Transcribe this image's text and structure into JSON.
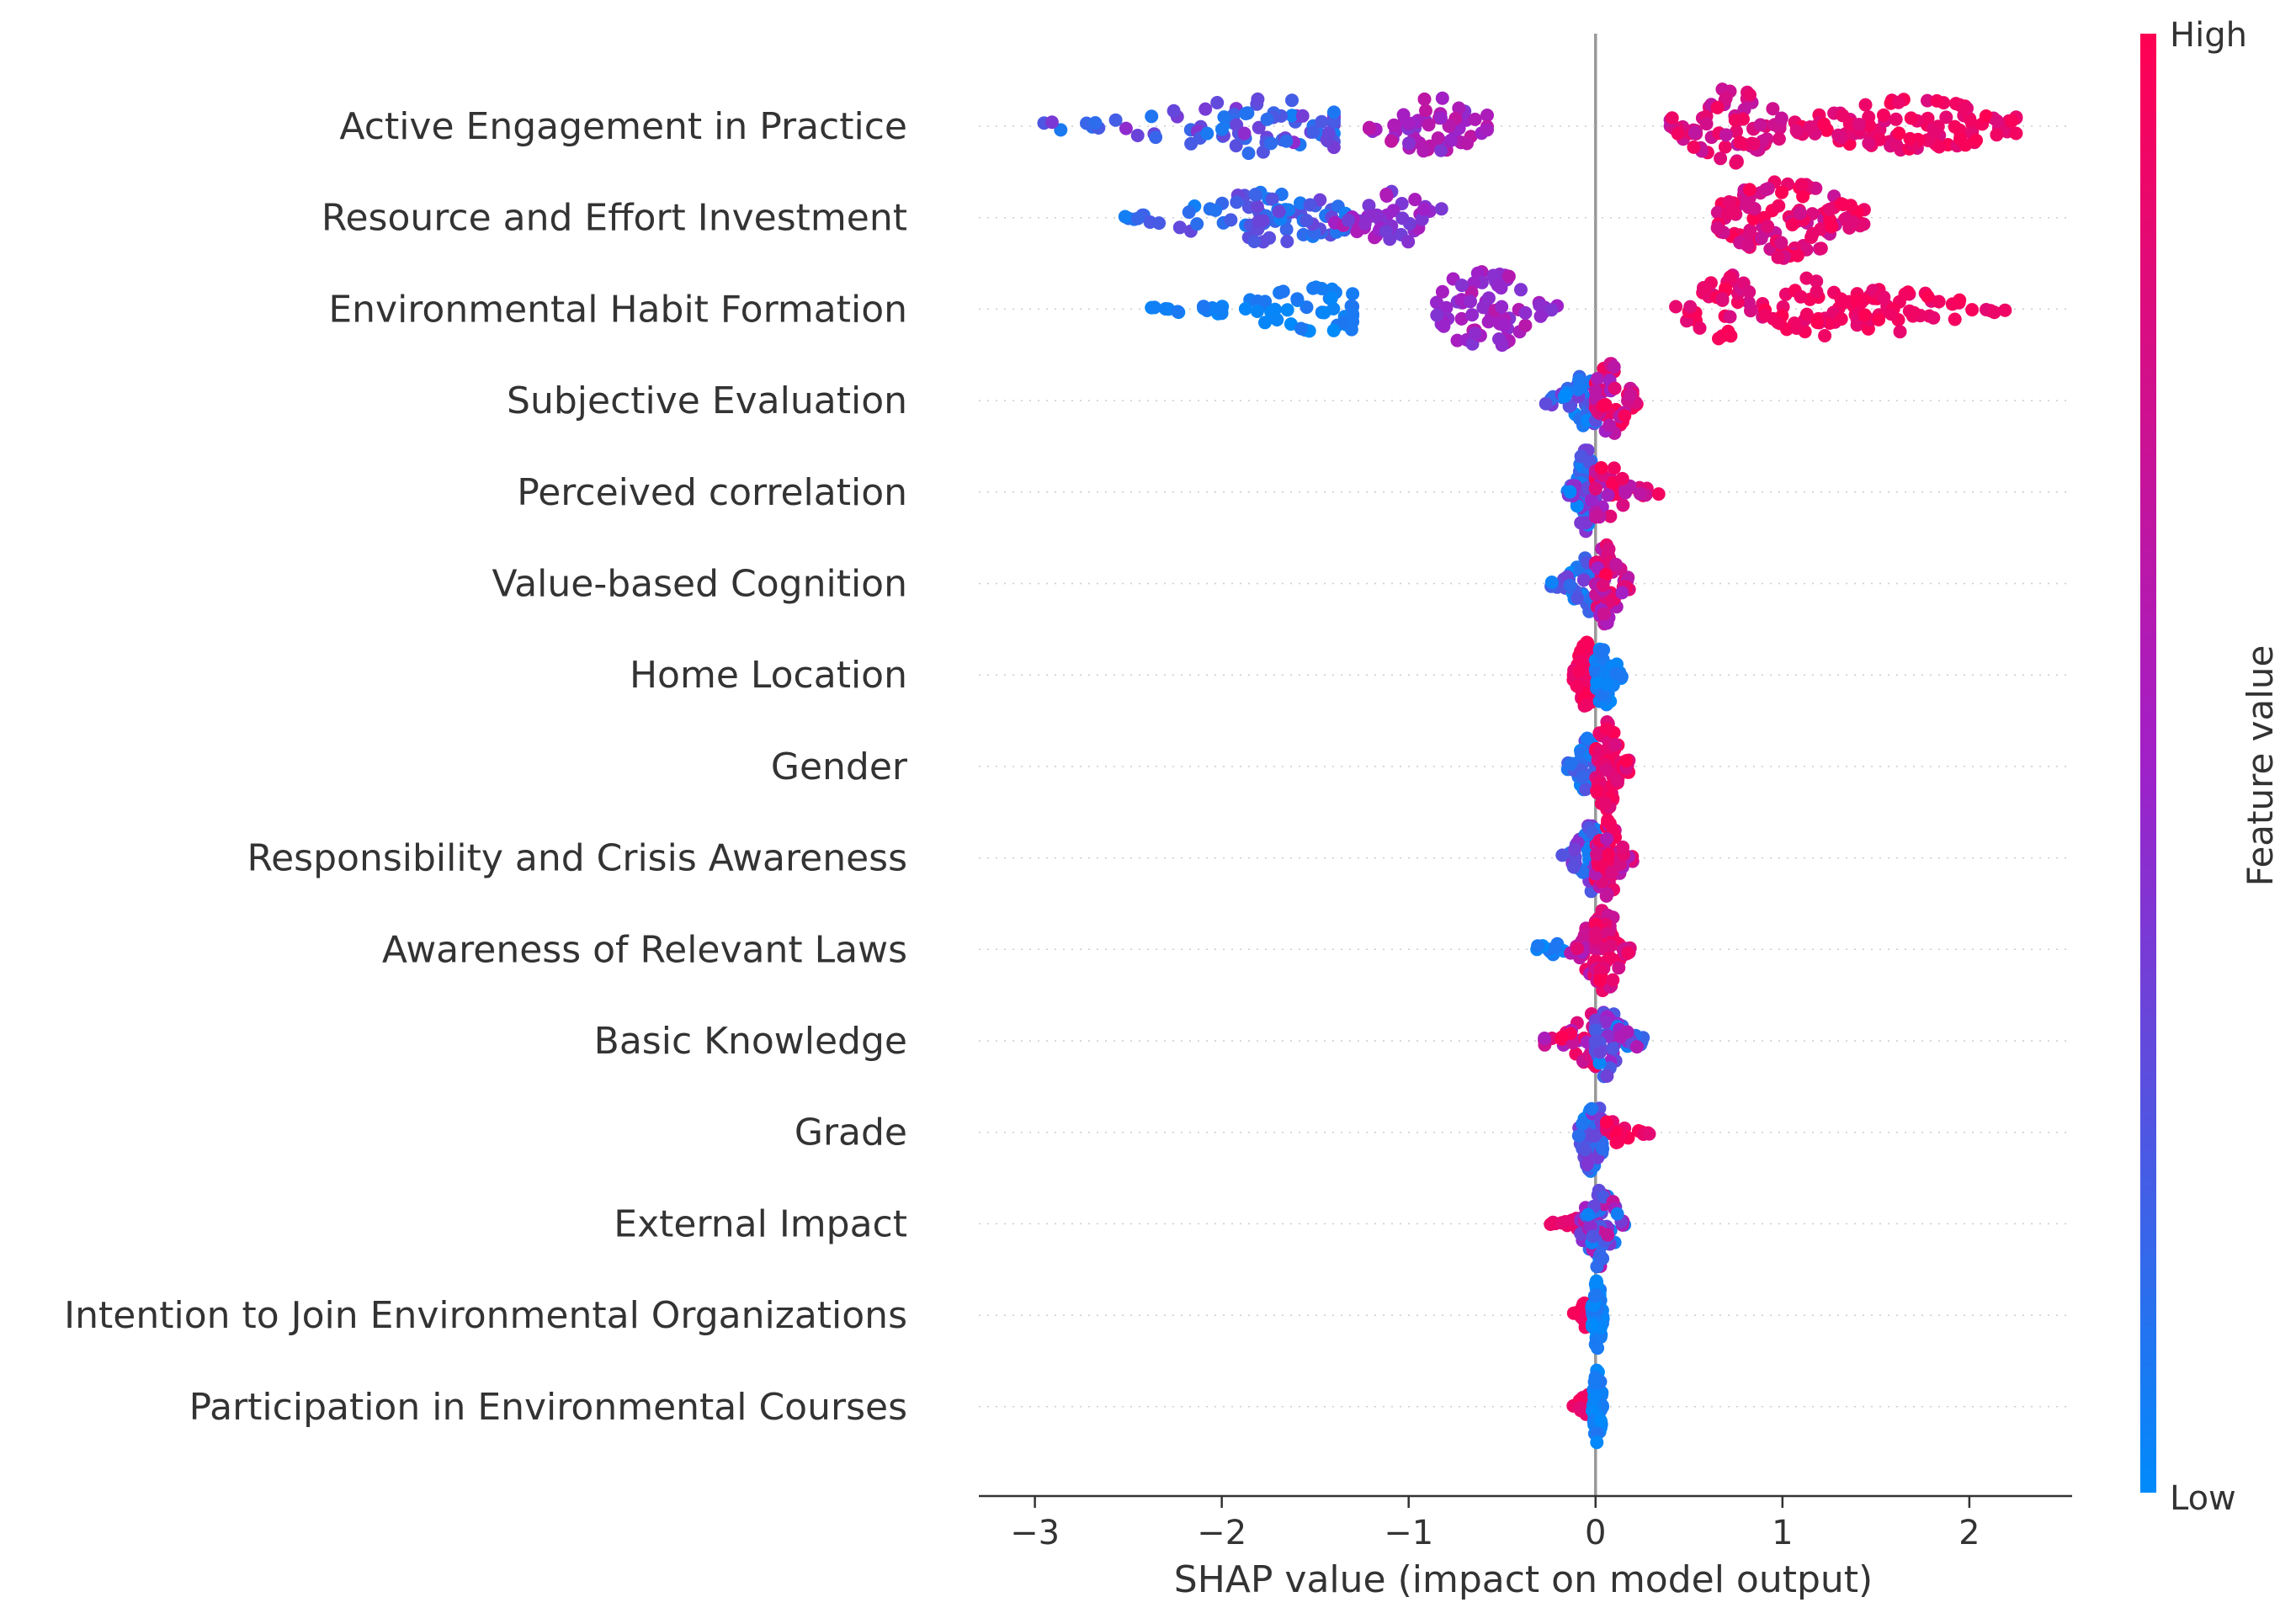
{
  "chart_data": {
    "type": "scatter",
    "subtype": "shap-beeswarm",
    "title": "",
    "xlabel": "SHAP value (impact on model output)",
    "xlim": [
      -3.3,
      2.55
    ],
    "xticks": [
      -3,
      -2,
      -1,
      0,
      1,
      2
    ],
    "xtick_labels": [
      "−3",
      "−2",
      "−1",
      "0",
      "1",
      "2"
    ],
    "grid": false,
    "colorbar": {
      "title": "Feature value",
      "high_label": "High",
      "low_label": "Low",
      "low_color": "#008bfb",
      "mid_color": "#a020c8",
      "high_color": "#ff0052"
    },
    "series": [
      {
        "name": "Active Engagement in Practice",
        "clusters": [
          {
            "min": -3.0,
            "max": -1.4,
            "center": -1.75,
            "width": 1.0,
            "color_low": 0.05,
            "color_high": 0.45,
            "n": 80
          },
          {
            "min": -1.3,
            "max": -0.58,
            "center": -0.85,
            "width": 1.0,
            "color_low": 0.4,
            "color_high": 0.7,
            "n": 55
          },
          {
            "min": 0.4,
            "max": 1.0,
            "center": 0.72,
            "width": 1.4,
            "color_low": 0.65,
            "color_high": 0.95,
            "n": 70
          },
          {
            "min": 1.0,
            "max": 2.25,
            "center": 1.7,
            "width": 1.0,
            "color_low": 0.8,
            "color_high": 1.0,
            "n": 110
          }
        ]
      },
      {
        "name": "Resource and Effort Investment",
        "clusters": [
          {
            "min": -2.55,
            "max": -1.3,
            "center": -1.75,
            "width": 0.9,
            "color_low": 0.05,
            "color_high": 0.35,
            "n": 80
          },
          {
            "min": -1.4,
            "max": -0.8,
            "center": -1.1,
            "width": 1.0,
            "color_low": 0.35,
            "color_high": 0.6,
            "n": 45
          },
          {
            "min": 0.65,
            "max": 1.45,
            "center": 1.02,
            "width": 1.5,
            "color_low": 0.7,
            "color_high": 1.0,
            "n": 110
          }
        ]
      },
      {
        "name": "Environmental Habit Formation",
        "clusters": [
          {
            "min": -2.4,
            "max": -1.3,
            "center": -1.45,
            "width": 0.8,
            "color_low": 0.0,
            "color_high": 0.1,
            "n": 60
          },
          {
            "min": -0.85,
            "max": -0.2,
            "center": -0.6,
            "width": 1.5,
            "color_low": 0.4,
            "color_high": 0.65,
            "n": 70
          },
          {
            "min": 0.4,
            "max": 0.95,
            "center": 0.72,
            "width": 1.2,
            "color_low": 0.75,
            "color_high": 1.0,
            "n": 45
          },
          {
            "min": 0.95,
            "max": 1.4,
            "center": 1.15,
            "width": 1.1,
            "color_low": 0.85,
            "color_high": 1.0,
            "n": 35
          },
          {
            "min": 1.4,
            "max": 2.28,
            "center": 1.6,
            "width": 0.8,
            "color_low": 0.85,
            "color_high": 1.0,
            "n": 50
          }
        ]
      },
      {
        "name": "Subjective Evaluation",
        "clusters": [
          {
            "min": -0.28,
            "max": 0.0,
            "center": -0.05,
            "width": 1.0,
            "color_low": 0.0,
            "color_high": 0.4,
            "n": 40
          },
          {
            "min": 0.0,
            "max": 0.24,
            "center": 0.08,
            "width": 1.3,
            "color_low": 0.5,
            "color_high": 1.0,
            "n": 50
          }
        ]
      },
      {
        "name": "Perceived correlation",
        "clusters": [
          {
            "min": -0.15,
            "max": 0.0,
            "center": -0.05,
            "width": 1.5,
            "color_low": 0.0,
            "color_high": 0.5,
            "n": 60
          },
          {
            "min": 0.0,
            "max": 0.35,
            "center": 0.05,
            "width": 1.0,
            "color_low": 0.5,
            "color_high": 1.0,
            "n": 40
          }
        ]
      },
      {
        "name": "Value-based Cognition",
        "clusters": [
          {
            "min": -0.25,
            "max": 0.0,
            "center": -0.03,
            "width": 1.0,
            "color_low": 0.0,
            "color_high": 0.4,
            "n": 40
          },
          {
            "min": 0.0,
            "max": 0.18,
            "center": 0.06,
            "width": 1.5,
            "color_low": 0.5,
            "color_high": 1.0,
            "n": 60
          }
        ]
      },
      {
        "name": "Home Location",
        "clusters": [
          {
            "min": -0.12,
            "max": 0.0,
            "center": -0.05,
            "width": 1.2,
            "color_low": 0.85,
            "color_high": 1.0,
            "n": 50
          },
          {
            "min": 0.0,
            "max": 0.14,
            "center": 0.05,
            "width": 1.2,
            "color_low": 0.0,
            "color_high": 0.1,
            "n": 50
          }
        ]
      },
      {
        "name": "Gender",
        "clusters": [
          {
            "min": -0.15,
            "max": 0.0,
            "center": -0.04,
            "width": 1.0,
            "color_low": 0.0,
            "color_high": 0.3,
            "n": 40
          },
          {
            "min": 0.0,
            "max": 0.18,
            "center": 0.06,
            "width": 1.6,
            "color_low": 0.8,
            "color_high": 1.0,
            "n": 70
          }
        ]
      },
      {
        "name": "Responsibility and Crisis Awareness",
        "clusters": [
          {
            "min": -0.18,
            "max": 0.0,
            "center": -0.03,
            "width": 1.2,
            "color_low": 0.0,
            "color_high": 0.45,
            "n": 50
          },
          {
            "min": 0.0,
            "max": 0.2,
            "center": 0.06,
            "width": 1.4,
            "color_low": 0.5,
            "color_high": 1.0,
            "n": 60
          }
        ]
      },
      {
        "name": "Awareness of Relevant Laws",
        "clusters": [
          {
            "min": -0.35,
            "max": -0.15,
            "center": -0.25,
            "width": 0.3,
            "color_low": 0.0,
            "color_high": 0.1,
            "n": 12
          },
          {
            "min": -0.15,
            "max": 0.0,
            "center": -0.02,
            "width": 1.0,
            "color_low": 0.5,
            "color_high": 1.0,
            "n": 40
          },
          {
            "min": 0.0,
            "max": 0.2,
            "center": 0.05,
            "width": 1.5,
            "color_low": 0.7,
            "color_high": 1.0,
            "n": 60
          }
        ]
      },
      {
        "name": "Basic Knowledge",
        "clusters": [
          {
            "min": -0.28,
            "max": 0.0,
            "center": -0.03,
            "width": 1.0,
            "color_low": 0.5,
            "color_high": 1.0,
            "n": 40
          },
          {
            "min": 0.0,
            "max": 0.26,
            "center": 0.04,
            "width": 1.4,
            "color_low": 0.0,
            "color_high": 0.6,
            "n": 60
          }
        ]
      },
      {
        "name": "Grade",
        "clusters": [
          {
            "min": -0.1,
            "max": 0.06,
            "center": -0.02,
            "width": 1.4,
            "color_low": 0.0,
            "color_high": 0.45,
            "n": 55
          },
          {
            "min": 0.06,
            "max": 0.3,
            "center": 0.1,
            "width": 0.45,
            "color_low": 0.85,
            "color_high": 1.0,
            "n": 25
          }
        ]
      },
      {
        "name": "External Impact",
        "clusters": [
          {
            "min": -0.25,
            "max": -0.05,
            "center": -0.15,
            "width": 0.3,
            "color_low": 0.85,
            "color_high": 1.0,
            "n": 12
          },
          {
            "min": -0.08,
            "max": 0.16,
            "center": 0.01,
            "width": 1.6,
            "color_low": 0.0,
            "color_high": 0.7,
            "n": 65
          }
        ]
      },
      {
        "name": "Intention to Join Environmental Organizations",
        "clusters": [
          {
            "min": -0.12,
            "max": -0.02,
            "center": -0.06,
            "width": 0.45,
            "color_low": 0.9,
            "color_high": 1.0,
            "n": 15
          },
          {
            "min": -0.02,
            "max": 0.04,
            "center": 0.01,
            "width": 1.3,
            "color_low": 0.0,
            "color_high": 0.1,
            "n": 55
          }
        ]
      },
      {
        "name": "Participation in Environmental Courses",
        "clusters": [
          {
            "min": -0.12,
            "max": -0.02,
            "center": -0.05,
            "width": 0.45,
            "color_low": 0.85,
            "color_high": 1.0,
            "n": 18
          },
          {
            "min": -0.02,
            "max": 0.04,
            "center": 0.01,
            "width": 1.3,
            "color_low": 0.0,
            "color_high": 0.1,
            "n": 55
          }
        ]
      }
    ]
  }
}
